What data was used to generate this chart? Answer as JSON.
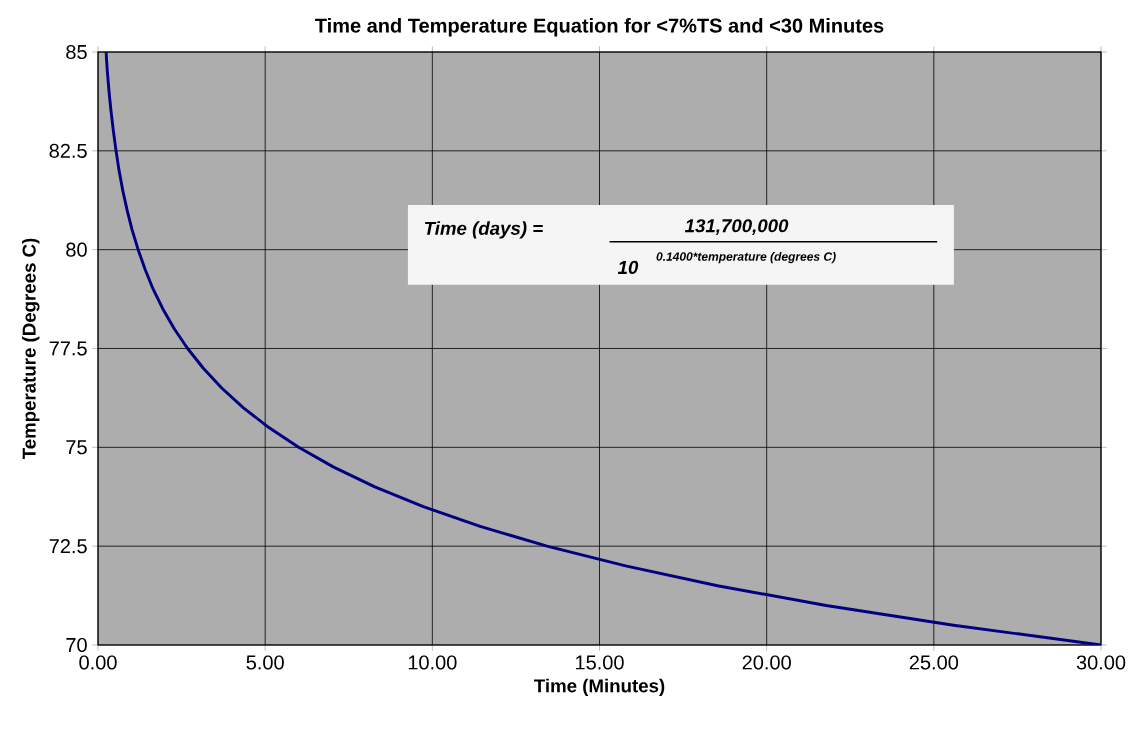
{
  "chart_data": {
    "type": "line",
    "title": "Time and Temperature Equation for <7%TS and <30 Minutes",
    "xlabel": "Time (Minutes)",
    "ylabel": "Temperature (Degrees C)",
    "annotations": [
      "Time (days) =",
      "131,700,000",
      "10",
      "0.1400*temperature (degrees C)"
    ],
    "x": [
      0.24,
      0.28,
      0.33,
      0.39,
      0.46,
      0.54,
      0.63,
      0.74,
      0.87,
      1.02,
      1.2,
      1.41,
      1.65,
      1.94,
      2.28,
      2.68,
      3.15,
      3.7,
      4.35,
      5.11,
      6.0,
      7.05,
      8.28,
      9.73,
      11.43,
      13.43,
      15.78,
      18.53,
      21.78,
      25.59,
      30.0
    ],
    "series": [
      {
        "color": "#000080",
        "values": [
          85,
          84.5,
          84,
          83.5,
          83,
          82.5,
          82,
          81.5,
          81,
          80.5,
          80,
          79.5,
          79,
          78.5,
          78,
          77.5,
          77,
          76.5,
          76,
          75.5,
          75,
          74.5,
          74,
          73.5,
          73,
          72.5,
          72,
          71.5,
          71,
          70.5,
          70
        ]
      }
    ],
    "xlim": [
      0,
      30
    ],
    "ylim": [
      70,
      85
    ],
    "xticks": [
      {
        "value": 0,
        "label": "0.00"
      },
      {
        "value": 5,
        "label": "5.00"
      },
      {
        "value": 10,
        "label": "10.00"
      },
      {
        "value": 15,
        "label": "15.00"
      },
      {
        "value": 20,
        "label": "20.00"
      },
      {
        "value": 25,
        "label": "25.00"
      },
      {
        "value": 30,
        "label": "30.00"
      }
    ],
    "yticks": [
      70,
      72.5,
      75,
      77.5,
      80,
      82.5,
      85
    ],
    "grid": true,
    "marker": "none",
    "line_style": "solid"
  }
}
